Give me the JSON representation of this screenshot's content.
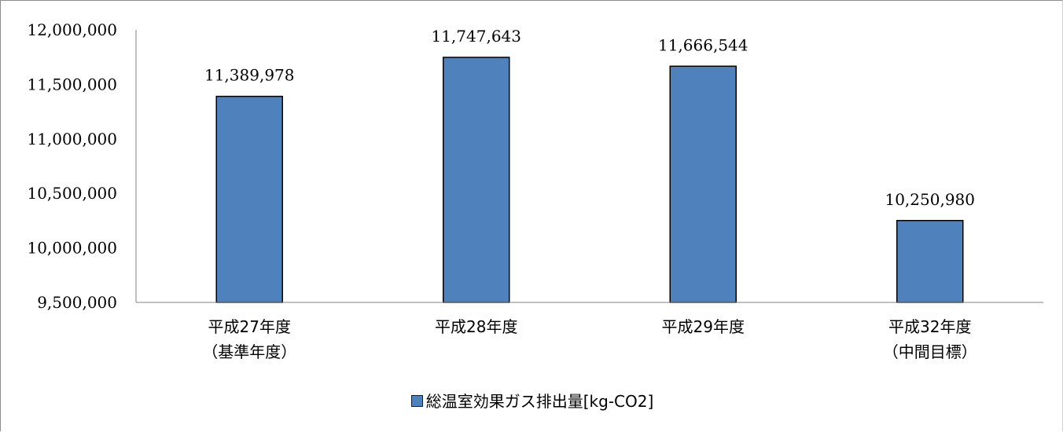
{
  "chart_data": {
    "type": "bar",
    "title": "",
    "xlabel": "",
    "ylabel": "",
    "categories": [
      [
        "平成27年度",
        "（基準年度）"
      ],
      [
        "平成28年度"
      ],
      [
        "平成29年度"
      ],
      [
        "平成32年度",
        "（中間目標）"
      ]
    ],
    "series": [
      {
        "name": "総温室効果ガス排出量[kg-CO2]",
        "values": [
          11389978,
          11747643,
          11666544,
          10250980
        ]
      }
    ],
    "value_labels": [
      "11,389,978",
      "11,747,643",
      "11,666,544",
      "10,250,980"
    ],
    "ylim": [
      9500000,
      12000000
    ],
    "yticks": [
      9500000,
      10000000,
      10500000,
      11000000,
      11500000,
      12000000
    ],
    "ytick_labels": [
      "9,500,000",
      "10,000,000",
      "10,500,000",
      "11,000,000",
      "11,500,000",
      "12,000,000"
    ],
    "grid": false,
    "legend_position": "bottom",
    "colors": {
      "bar_fill": "#4f81bd",
      "bar_stroke": "#000000",
      "axis": "#808080"
    }
  }
}
